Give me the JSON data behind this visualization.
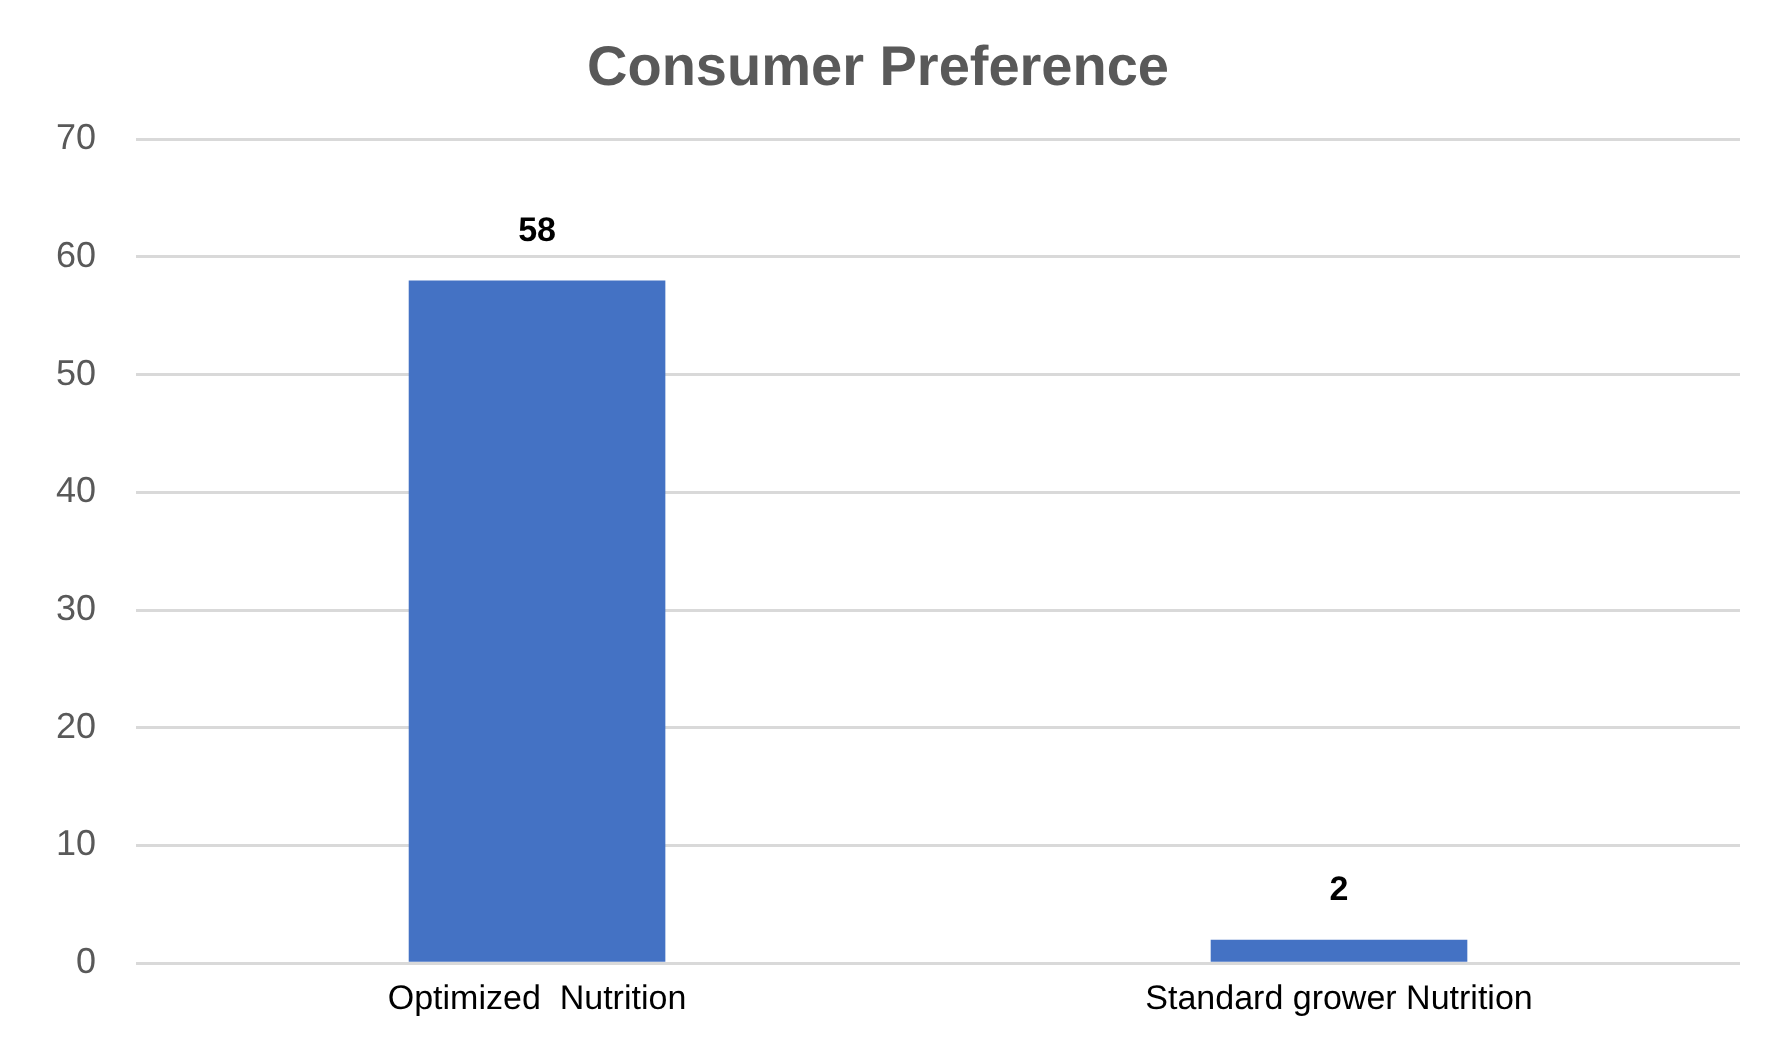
{
  "chart_data": {
    "type": "bar",
    "title": "Consumer Preference",
    "categories": [
      "Optimized  Nutrition",
      "Standard grower Nutrition"
    ],
    "values": [
      58,
      2
    ],
    "color": "#4472c4",
    "ylim": [
      0,
      70
    ],
    "yticks": [
      0,
      10,
      20,
      30,
      40,
      50,
      60,
      70
    ],
    "grid": "y",
    "data_labels": true,
    "legend": false
  }
}
